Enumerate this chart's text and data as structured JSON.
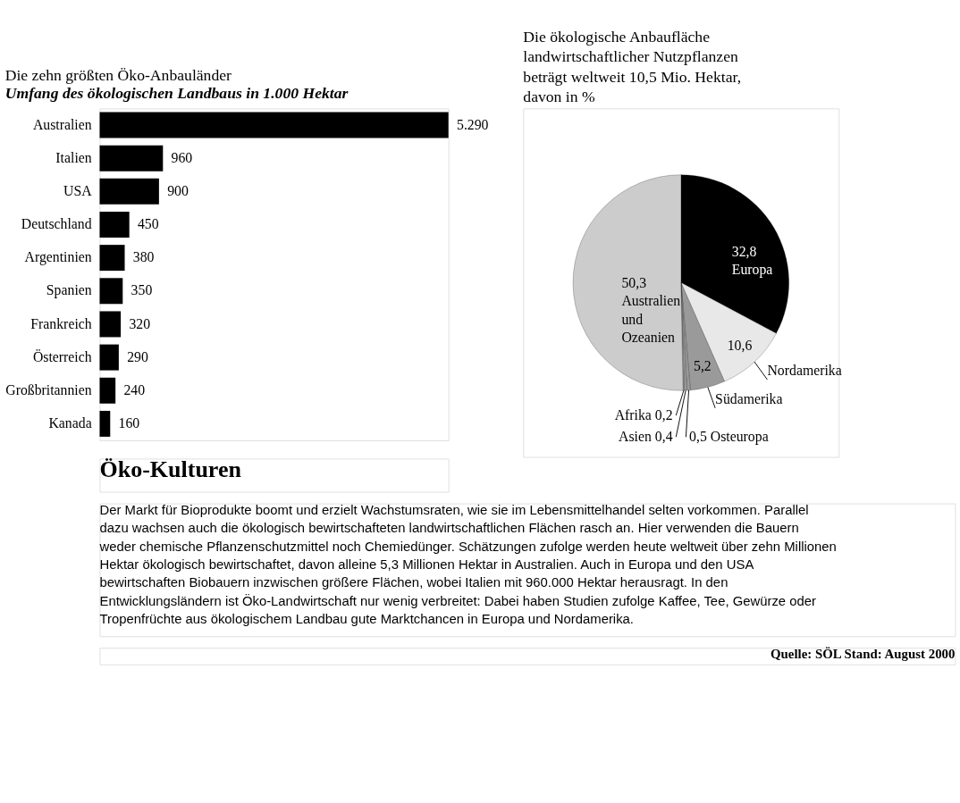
{
  "chart_data": [
    {
      "type": "bar",
      "orientation": "horizontal",
      "title": "Die zehn größten Öko-Anbauländer",
      "subtitle": "Umfang des ökologischen Landbaus in 1.000 Hektar",
      "categories": [
        "Australien",
        "Italien",
        "USA",
        "Deutschland",
        "Argentinien",
        "Spanien",
        "Frankreich",
        "Österreich",
        "Großbritannien",
        "Kanada"
      ],
      "values": [
        5290,
        960,
        900,
        450,
        380,
        350,
        320,
        290,
        240,
        160
      ],
      "value_labels": [
        "5.290",
        "960",
        "900",
        "450",
        "380",
        "350",
        "320",
        "290",
        "240",
        "160"
      ],
      "color": "#000000",
      "annotations": [
        "Öko-Kulturen",
        "Der Markt für Bioprodukte boomt und erzielt Wachstumsraten, wie sie im Lebensmittelhandel selten vorkommen. Parallel dazu wachsen auch die ökologisch bewirtschafteten landwirtschaftlichen Flächen rasch an. Hier verwenden die Bauern weder chemische Pflanzenschutzmittel noch Chemiedünger. Schätzungen zufolge werden heute weltweit über zehn Millionen Hektar ökologisch bewirtschaftet, davon alleine 5,3 Millionen Hektar in Australien. Auch in Europa und den USA bewirtschaften Biobauern inzwischen größere Flächen, wobei Italien mit 960.000 Hektar herausragt. In den Entwicklungsländern ist Öko-Landwirtschaft nur wenig verbreitet: Dabei haben Studien zufolge Kaffee, Tee, Gewürze oder Tropenfrüchte aus ökologischem Landbau gute Marktchancen in Europa und Nordamerika.",
        "Quelle: SÖL   Stand: August 2000"
      ]
    },
    {
      "type": "pie",
      "title": "Die ökologische Anbaufläche landwirtschaftlicher Nutzpflanzen beträgt weltweit 10,5 Mio. Hektar, davon in %",
      "categories": [
        "Europa",
        "Nordamerika",
        "Südamerika",
        "Osteuropa",
        "Asien",
        "Afrika",
        "Australien und Ozeanien"
      ],
      "values": [
        32.8,
        10.6,
        5.2,
        0.5,
        0.4,
        0.2,
        50.3
      ],
      "value_labels": [
        "32,8",
        "10,6",
        "5,2",
        "0,5",
        "0,4",
        "0,2",
        "50,3"
      ],
      "colors": [
        "#000000",
        "#e8e8e8",
        "#9a9a9a",
        "#9a9a9a",
        "#9a9a9a",
        "#9a9a9a",
        "#cccccc"
      ]
    }
  ]
}
